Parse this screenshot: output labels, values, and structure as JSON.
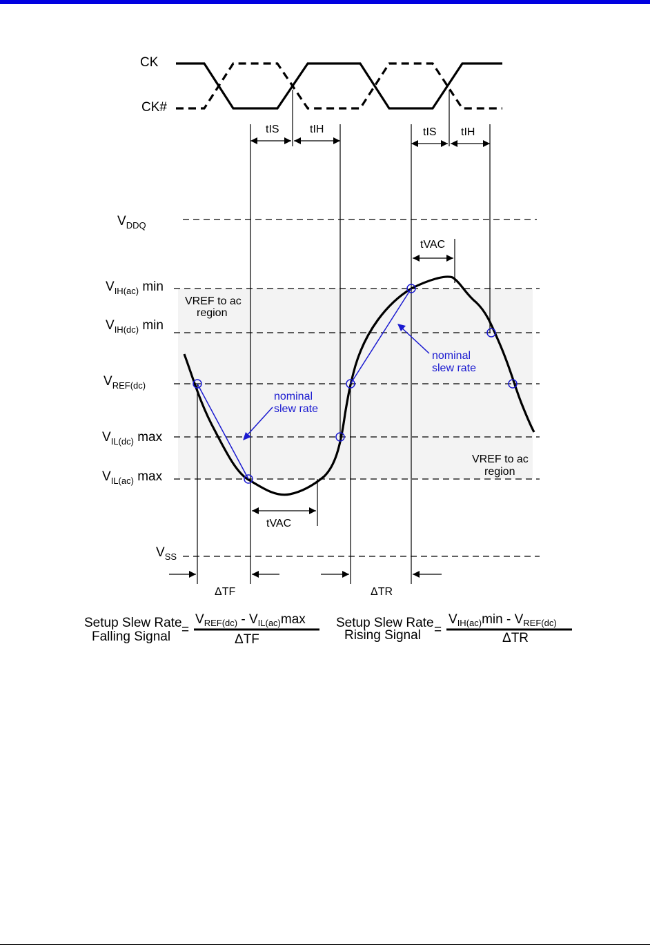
{
  "clock": {
    "ck_label": "CK",
    "ckb_label": "CK#",
    "tis_label": "tIS",
    "tih_label": "tIH"
  },
  "levels": {
    "vddq": {
      "main": "V",
      "sub": "DDQ",
      "suffix": ""
    },
    "vih_ac": {
      "main": "V",
      "sub": "IH(ac)",
      "suffix": " min"
    },
    "vih_dc": {
      "main": "V",
      "sub": "IH(dc)",
      "suffix": " min"
    },
    "vref_dc": {
      "main": "V",
      "sub": "REF(dc)",
      "suffix": ""
    },
    "vil_dc": {
      "main": "V",
      "sub": "IL(dc)",
      "suffix": " max"
    },
    "vil_ac": {
      "main": "V",
      "sub": "IL(ac)",
      "suffix": " max"
    },
    "vss": {
      "main": "V",
      "sub": "SS",
      "suffix": ""
    }
  },
  "annotations": {
    "region_top_line1": "VREF to ac",
    "region_top_line2": "region",
    "region_bottom_line1": "VREF to ac",
    "region_bottom_line2": "region",
    "nominal_left_line1": "nominal",
    "nominal_left_line2": "slew rate",
    "nominal_right_line1": "nominal",
    "nominal_right_line2": "slew rate",
    "tvac_top": "tVAC",
    "tvac_bottom": "tVAC",
    "delta_tf": "ΔTF",
    "delta_tr": "ΔTR"
  },
  "formulas": {
    "falling": {
      "name_line1": "Setup Slew Rate",
      "name_line2": "Falling Signal",
      "equals": "=",
      "num_v1": "V",
      "num_v1_sub": "REF(dc)",
      "num_minus": " - ",
      "num_v2": "V",
      "num_v2_sub": "IL(ac)",
      "num_tail": "max",
      "denominator": "ΔTF"
    },
    "rising": {
      "name_line1": "Setup Slew Rate",
      "name_line2": "Rising Signal",
      "equals": "=",
      "num_v1": "V",
      "num_v1_sub": "IH(ac)",
      "num_mid": "min - ",
      "num_v2": "V",
      "num_v2_sub": "REF(dc)",
      "denominator": "ΔTR"
    }
  },
  "colors": {
    "header_bar": "#0000e0",
    "annotation_blue": "#1a1ad0",
    "region_shade": "#f3f3f3"
  }
}
